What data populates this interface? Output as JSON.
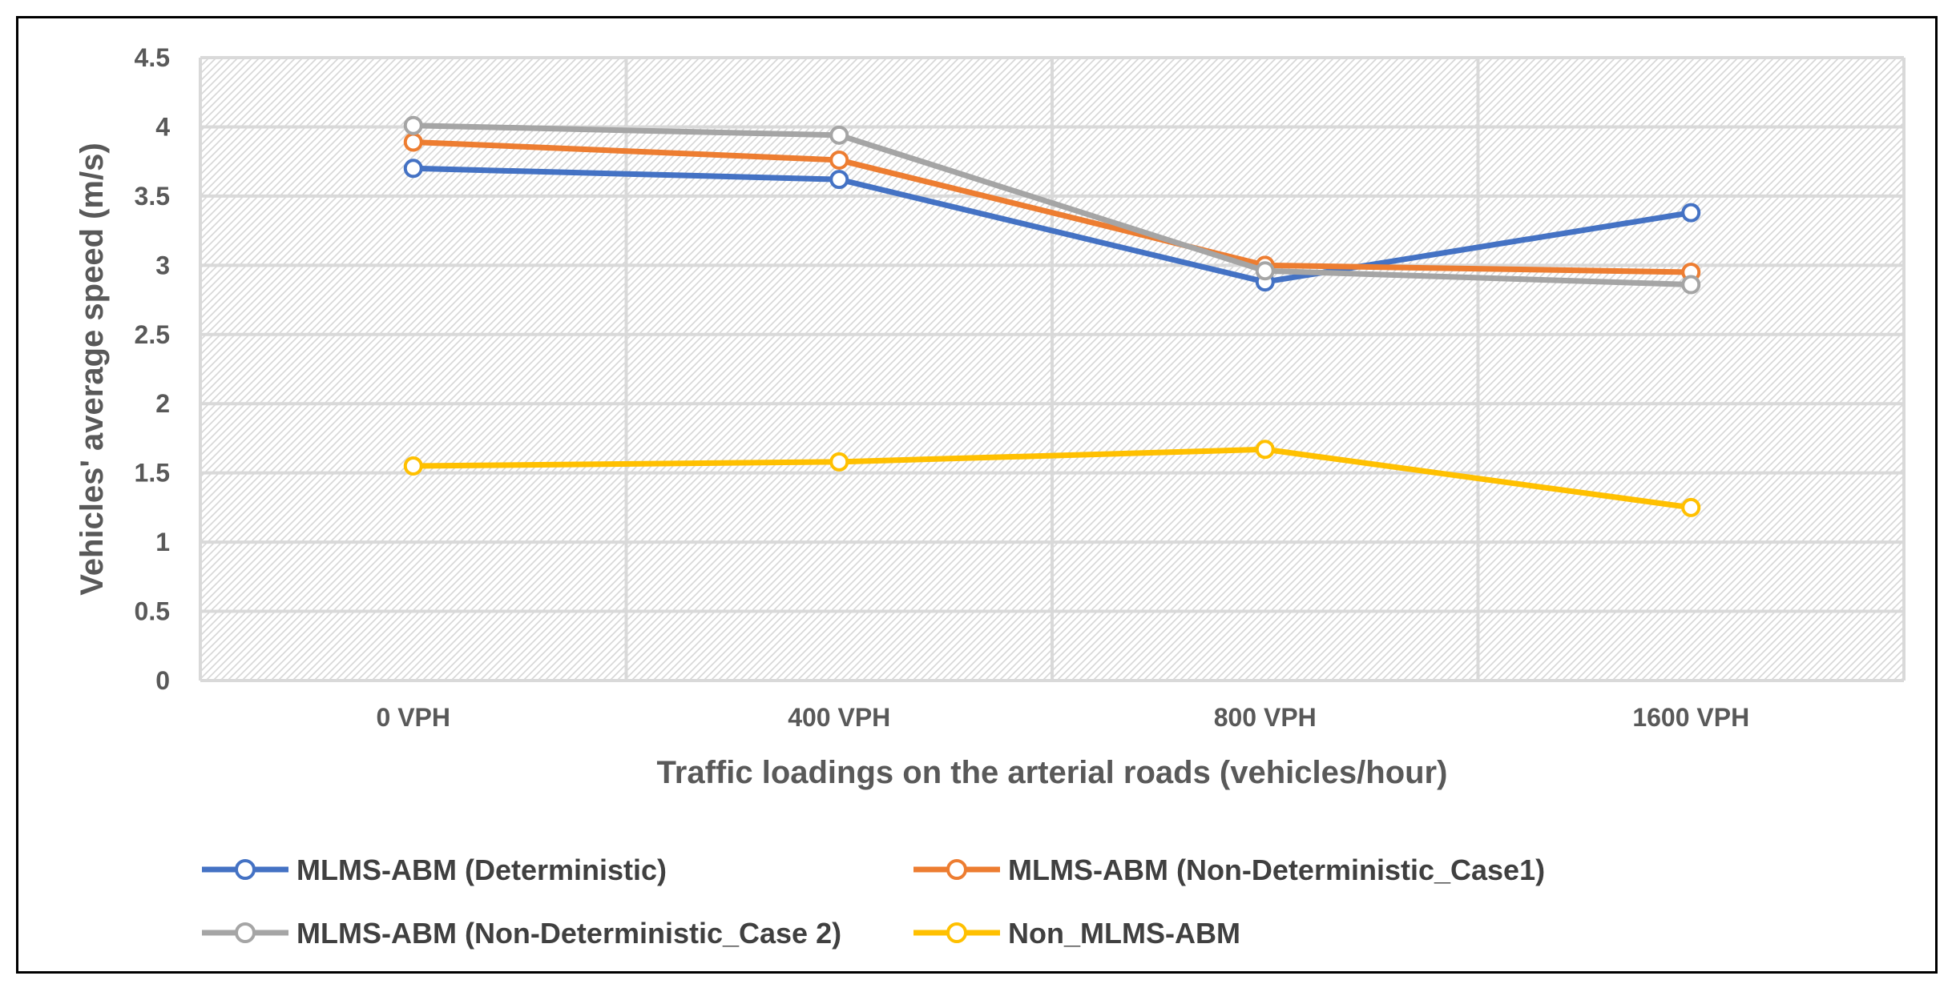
{
  "chart_data": {
    "type": "line",
    "title": "",
    "xlabel": "Traffic loadings on the arterial roads (vehicles/hour)",
    "ylabel": "Vehicles' average speed (m/s)",
    "categories": [
      "0 VPH",
      "400 VPH",
      "800 VPH",
      "1600 VPH"
    ],
    "ylim": [
      0,
      4.5
    ],
    "yticks": [
      "0",
      "0.5",
      "1",
      "1.5",
      "2",
      "2.5",
      "3",
      "3.5",
      "4",
      "4.5"
    ],
    "grid": true,
    "legend_position": "bottom",
    "series": [
      {
        "name": "MLMS-ABM (Deterministic)",
        "color": "#4472C4",
        "values": [
          3.7,
          3.62,
          2.88,
          3.38
        ]
      },
      {
        "name": "MLMS-ABM (Non-Deterministic_Case1)",
        "color": "#ED7D31",
        "values": [
          3.89,
          3.76,
          3.0,
          2.95
        ]
      },
      {
        "name": "MLMS-ABM (Non-Deterministic_Case 2)",
        "color": "#A5A5A5",
        "values": [
          4.01,
          3.94,
          2.96,
          2.86
        ]
      },
      {
        "name": "Non_MLMS-ABM",
        "color": "#FFC000",
        "values": [
          1.55,
          1.58,
          1.67,
          1.25
        ]
      }
    ]
  }
}
